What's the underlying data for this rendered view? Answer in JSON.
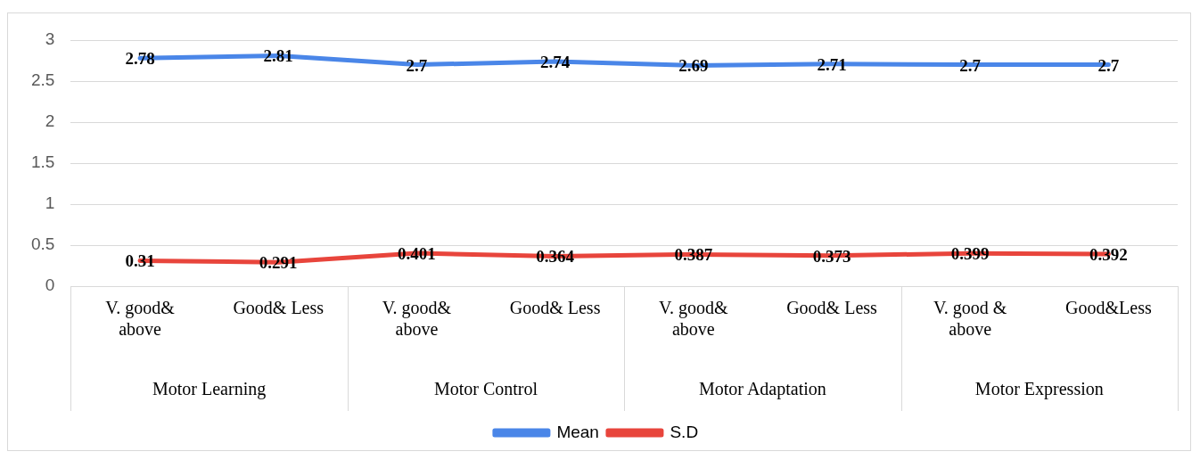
{
  "chart_data": {
    "type": "line",
    "categories": [
      "V. good& above",
      "Good& Less",
      "V. good& above",
      "Good& Less",
      "V. good& above",
      "Good& Less",
      "V. good & above",
      "Good&Less"
    ],
    "series": [
      {
        "name": "Mean",
        "color": "#4a86e8",
        "values": [
          2.78,
          2.81,
          2.7,
          2.74,
          2.69,
          2.71,
          2.7,
          2.7
        ]
      },
      {
        "name": "S.D",
        "color": "#e8453c",
        "values": [
          0.31,
          0.291,
          0.401,
          0.364,
          0.387,
          0.373,
          0.399,
          0.392
        ]
      }
    ],
    "annotations": [
      "Motor Learning",
      "Motor Control",
      "Motor Adaptation",
      "Motor Expression"
    ],
    "ylim": [
      0,
      3
    ],
    "yticks": [
      0,
      0.5,
      1,
      1.5,
      2,
      2.5,
      3
    ],
    "grid": "y",
    "legend": "bottom",
    "data_labels": true,
    "marker": "none",
    "line_style": "solid"
  }
}
